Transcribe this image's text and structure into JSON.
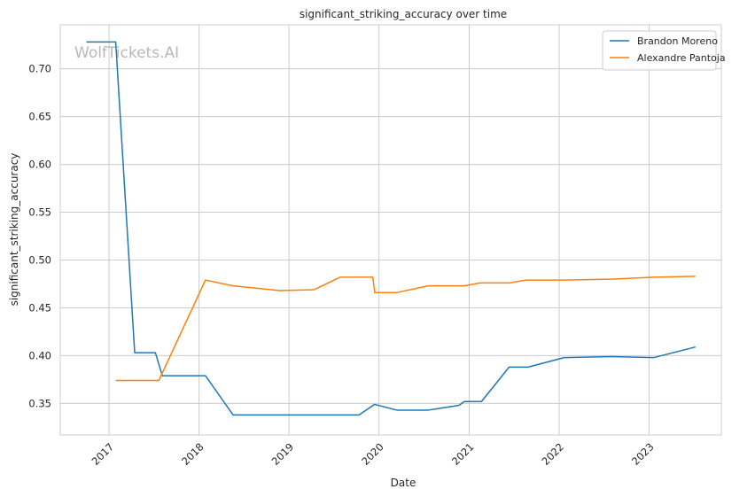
{
  "chart_data": {
    "type": "line",
    "title": "significant_striking_accuracy over time",
    "xlabel": "Date",
    "ylabel": "significant_striking_accuracy",
    "watermark": "WolfTickets.AI",
    "xlim": [
      "2016-06-17",
      "2023-10-21"
    ],
    "ylim": [
      0.317,
      0.746
    ],
    "x_ticks": [
      "2017",
      "2018",
      "2019",
      "2020",
      "2021",
      "2022",
      "2023"
    ],
    "y_ticks": [
      0.35,
      0.4,
      0.45,
      0.5,
      0.55,
      0.6,
      0.65,
      0.7
    ],
    "grid": true,
    "legend_position": "top-right",
    "series": [
      {
        "name": "Brandon Moreno",
        "color": "#1f77b4",
        "points": [
          [
            "2016-10-01",
            0.728
          ],
          [
            "2017-01-28",
            0.728
          ],
          [
            "2017-04-15",
            0.403
          ],
          [
            "2017-07-08",
            0.403
          ],
          [
            "2017-08-05",
            0.379
          ],
          [
            "2018-01-27",
            0.379
          ],
          [
            "2018-05-19",
            0.338
          ],
          [
            "2019-08-31",
            0.338
          ],
          [
            "2019-10-12",
            0.338
          ],
          [
            "2019-12-14",
            0.349
          ],
          [
            "2020-03-14",
            0.343
          ],
          [
            "2020-07-19",
            0.343
          ],
          [
            "2020-11-21",
            0.348
          ],
          [
            "2020-12-12",
            0.352
          ],
          [
            "2021-02-20",
            0.352
          ],
          [
            "2021-06-12",
            0.388
          ],
          [
            "2021-08-28",
            0.388
          ],
          [
            "2022-01-22",
            0.398
          ],
          [
            "2022-07-30",
            0.399
          ],
          [
            "2023-01-21",
            0.398
          ],
          [
            "2023-07-08",
            0.409
          ]
        ]
      },
      {
        "name": "Alexandre Pantoja",
        "color": "#ff7f0e",
        "points": [
          [
            "2017-01-28",
            0.374
          ],
          [
            "2017-07-22",
            0.374
          ],
          [
            "2018-01-27",
            0.479
          ],
          [
            "2018-05-19",
            0.473
          ],
          [
            "2018-11-24",
            0.468
          ],
          [
            "2019-04-13",
            0.469
          ],
          [
            "2019-07-27",
            0.482
          ],
          [
            "2019-12-07",
            0.482
          ],
          [
            "2019-12-15",
            0.466
          ],
          [
            "2020-03-14",
            0.466
          ],
          [
            "2020-07-19",
            0.473
          ],
          [
            "2020-12-12",
            0.473
          ],
          [
            "2021-02-13",
            0.476
          ],
          [
            "2021-06-12",
            0.476
          ],
          [
            "2021-08-21",
            0.479
          ],
          [
            "2022-01-22",
            0.479
          ],
          [
            "2022-07-30",
            0.48
          ],
          [
            "2023-01-21",
            0.482
          ],
          [
            "2023-07-08",
            0.483
          ]
        ]
      }
    ]
  }
}
